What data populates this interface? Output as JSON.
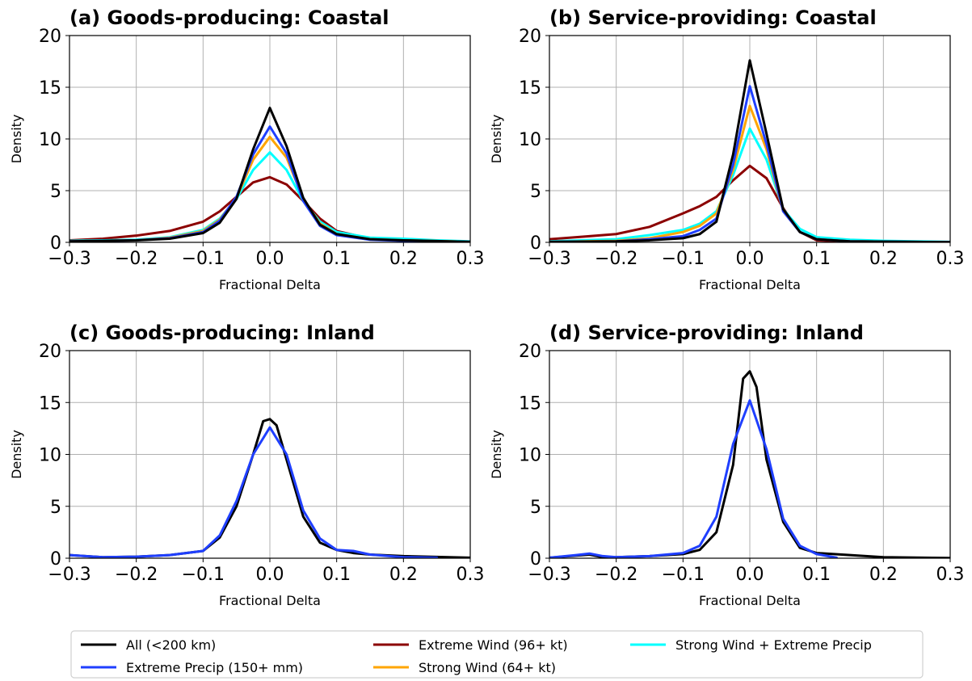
{
  "chart_data": [
    {
      "type": "line",
      "title": "(a) Goods-producing: Coastal",
      "xlabel": "Fractional Delta",
      "ylabel": "Density",
      "xlim": [
        -0.3,
        0.3
      ],
      "ylim": [
        0,
        20
      ],
      "xticks": [
        "−0.3",
        "−0.2",
        "−0.1",
        "0.0",
        "0.1",
        "0.2",
        "0.3"
      ],
      "yticks": [
        "0",
        "5",
        "10",
        "15",
        "20"
      ],
      "grid": true,
      "series": [
        {
          "name": "Extreme Wind (96+ kt)",
          "color": "#8b0000",
          "points": [
            [
              -0.3,
              0.2
            ],
            [
              -0.25,
              0.35
            ],
            [
              -0.2,
              0.65
            ],
            [
              -0.15,
              1.1
            ],
            [
              -0.1,
              2.0
            ],
            [
              -0.075,
              3.0
            ],
            [
              -0.05,
              4.4
            ],
            [
              -0.025,
              5.8
            ],
            [
              0,
              6.3
            ],
            [
              0.025,
              5.6
            ],
            [
              0.05,
              4.0
            ],
            [
              0.075,
              2.3
            ],
            [
              0.1,
              1.1
            ],
            [
              0.15,
              0.35
            ],
            [
              0.2,
              0.15
            ],
            [
              0.3,
              0.05
            ]
          ]
        },
        {
          "name": "Strong Wind + Extreme Precip",
          "color": "#00ffff",
          "points": [
            [
              -0.3,
              0.15
            ],
            [
              -0.2,
              0.25
            ],
            [
              -0.15,
              0.5
            ],
            [
              -0.1,
              1.2
            ],
            [
              -0.075,
              2.3
            ],
            [
              -0.05,
              4.2
            ],
            [
              -0.025,
              7.0
            ],
            [
              0,
              8.7
            ],
            [
              0.025,
              7.0
            ],
            [
              0.05,
              4.0
            ],
            [
              0.075,
              2.0
            ],
            [
              0.1,
              1.0
            ],
            [
              0.15,
              0.45
            ],
            [
              0.2,
              0.35
            ],
            [
              0.25,
              0.2
            ],
            [
              0.3,
              0.1
            ]
          ]
        },
        {
          "name": "Strong Wind (64+ kt)",
          "color": "#ffa500",
          "points": [
            [
              -0.3,
              0.1
            ],
            [
              -0.2,
              0.2
            ],
            [
              -0.15,
              0.45
            ],
            [
              -0.1,
              1.1
            ],
            [
              -0.075,
              2.2
            ],
            [
              -0.05,
              4.3
            ],
            [
              -0.025,
              8.0
            ],
            [
              0,
              10.2
            ],
            [
              0.025,
              8.2
            ],
            [
              0.05,
              4.2
            ],
            [
              0.075,
              1.8
            ],
            [
              0.1,
              0.8
            ],
            [
              0.15,
              0.3
            ],
            [
              0.2,
              0.2
            ],
            [
              0.3,
              0.05
            ]
          ]
        },
        {
          "name": "Extreme Precip (150+ mm)",
          "color": "#1f3fff",
          "points": [
            [
              -0.3,
              0.1
            ],
            [
              -0.2,
              0.2
            ],
            [
              -0.15,
              0.4
            ],
            [
              -0.1,
              1.0
            ],
            [
              -0.075,
              2.1
            ],
            [
              -0.05,
              4.4
            ],
            [
              -0.025,
              8.5
            ],
            [
              0,
              11.2
            ],
            [
              0.025,
              8.6
            ],
            [
              0.05,
              4.0
            ],
            [
              0.075,
              1.6
            ],
            [
              0.1,
              0.7
            ],
            [
              0.15,
              0.25
            ],
            [
              0.2,
              0.15
            ],
            [
              0.3,
              0.05
            ]
          ]
        },
        {
          "name": "All (<200 km)",
          "color": "#000000",
          "points": [
            [
              -0.3,
              0.1
            ],
            [
              -0.2,
              0.2
            ],
            [
              -0.15,
              0.35
            ],
            [
              -0.1,
              0.9
            ],
            [
              -0.075,
              1.9
            ],
            [
              -0.05,
              4.2
            ],
            [
              -0.025,
              9.0
            ],
            [
              0,
              13.0
            ],
            [
              0.025,
              9.3
            ],
            [
              0.05,
              4.3
            ],
            [
              0.075,
              1.7
            ],
            [
              0.1,
              0.8
            ],
            [
              0.15,
              0.3
            ],
            [
              0.2,
              0.2
            ],
            [
              0.3,
              0.05
            ]
          ]
        }
      ]
    },
    {
      "type": "line",
      "title": "(b) Service-providing: Coastal",
      "xlabel": "Fractional Delta",
      "ylabel": "Density",
      "xlim": [
        -0.3,
        0.3
      ],
      "ylim": [
        0,
        20
      ],
      "xticks": [
        "−0.3",
        "−0.2",
        "−0.1",
        "0.0",
        "0.1",
        "0.2",
        "0.3"
      ],
      "yticks": [
        "0",
        "5",
        "10",
        "15",
        "20"
      ],
      "grid": true,
      "series": [
        {
          "name": "Extreme Wind (96+ kt)",
          "color": "#8b0000",
          "points": [
            [
              -0.3,
              0.3
            ],
            [
              -0.25,
              0.55
            ],
            [
              -0.2,
              0.8
            ],
            [
              -0.15,
              1.5
            ],
            [
              -0.1,
              2.8
            ],
            [
              -0.075,
              3.5
            ],
            [
              -0.05,
              4.4
            ],
            [
              -0.025,
              6.0
            ],
            [
              0,
              7.4
            ],
            [
              0.025,
              6.2
            ],
            [
              0.05,
              3.3
            ],
            [
              0.075,
              1.0
            ],
            [
              0.1,
              0.2
            ],
            [
              0.15,
              0.05
            ],
            [
              0.3,
              0.0
            ]
          ]
        },
        {
          "name": "Strong Wind + Extreme Precip",
          "color": "#00ffff",
          "points": [
            [
              -0.3,
              0.1
            ],
            [
              -0.2,
              0.3
            ],
            [
              -0.15,
              0.7
            ],
            [
              -0.1,
              1.2
            ],
            [
              -0.075,
              1.8
            ],
            [
              -0.05,
              3.0
            ],
            [
              -0.025,
              6.5
            ],
            [
              0,
              11.0
            ],
            [
              0.025,
              8.0
            ],
            [
              0.05,
              3.2
            ],
            [
              0.075,
              1.3
            ],
            [
              0.1,
              0.5
            ],
            [
              0.15,
              0.25
            ],
            [
              0.2,
              0.15
            ],
            [
              0.3,
              0.05
            ]
          ]
        },
        {
          "name": "Strong Wind (64+ kt)",
          "color": "#ffa500",
          "points": [
            [
              -0.3,
              0.05
            ],
            [
              -0.2,
              0.15
            ],
            [
              -0.15,
              0.4
            ],
            [
              -0.1,
              1.0
            ],
            [
              -0.075,
              1.6
            ],
            [
              -0.05,
              2.8
            ],
            [
              -0.025,
              7.0
            ],
            [
              0,
              13.2
            ],
            [
              0.025,
              9.0
            ],
            [
              0.05,
              3.0
            ],
            [
              0.075,
              1.0
            ],
            [
              0.1,
              0.3
            ],
            [
              0.15,
              0.1
            ],
            [
              0.3,
              0.02
            ]
          ]
        },
        {
          "name": "Extreme Precip (150+ mm)",
          "color": "#1f3fff",
          "points": [
            [
              -0.3,
              0.05
            ],
            [
              -0.2,
              0.1
            ],
            [
              -0.15,
              0.3
            ],
            [
              -0.1,
              0.6
            ],
            [
              -0.075,
              1.2
            ],
            [
              -0.05,
              2.3
            ],
            [
              -0.025,
              7.5
            ],
            [
              0,
              15.1
            ],
            [
              0.025,
              9.5
            ],
            [
              0.05,
              3.0
            ],
            [
              0.075,
              1.0
            ],
            [
              0.1,
              0.3
            ],
            [
              0.15,
              0.1
            ],
            [
              0.3,
              0.02
            ]
          ]
        },
        {
          "name": "All (<200 km)",
          "color": "#000000",
          "points": [
            [
              -0.3,
              0.05
            ],
            [
              -0.2,
              0.1
            ],
            [
              -0.15,
              0.2
            ],
            [
              -0.1,
              0.4
            ],
            [
              -0.075,
              0.8
            ],
            [
              -0.05,
              2.0
            ],
            [
              -0.025,
              8.5
            ],
            [
              0,
              17.6
            ],
            [
              0.025,
              10.5
            ],
            [
              0.05,
              3.2
            ],
            [
              0.075,
              1.0
            ],
            [
              0.1,
              0.3
            ],
            [
              0.15,
              0.1
            ],
            [
              0.3,
              0.02
            ]
          ]
        }
      ]
    },
    {
      "type": "line",
      "title": "(c) Goods-producing: Inland",
      "xlabel": "Fractional Delta",
      "ylabel": "Density",
      "xlim": [
        -0.3,
        0.3
      ],
      "ylim": [
        0,
        20
      ],
      "xticks": [
        "−0.3",
        "−0.2",
        "−0.1",
        "0.0",
        "0.1",
        "0.2",
        "0.3"
      ],
      "yticks": [
        "0",
        "5",
        "10",
        "15",
        "20"
      ],
      "grid": true,
      "series": [
        {
          "name": "All (<200 km)",
          "color": "#000000",
          "points": [
            [
              -0.3,
              0.3
            ],
            [
              -0.25,
              0.1
            ],
            [
              -0.2,
              0.15
            ],
            [
              -0.15,
              0.3
            ],
            [
              -0.1,
              0.7
            ],
            [
              -0.075,
              2.0
            ],
            [
              -0.05,
              5.0
            ],
            [
              -0.025,
              10.0
            ],
            [
              -0.01,
              13.2
            ],
            [
              0,
              13.4
            ],
            [
              0.01,
              12.8
            ],
            [
              0.025,
              9.5
            ],
            [
              0.05,
              4.0
            ],
            [
              0.075,
              1.5
            ],
            [
              0.1,
              0.8
            ],
            [
              0.125,
              0.5
            ],
            [
              0.15,
              0.35
            ],
            [
              0.2,
              0.2
            ],
            [
              0.3,
              0.05
            ]
          ]
        },
        {
          "name": "Extreme Precip (150+ mm)",
          "color": "#1f3fff",
          "points": [
            [
              -0.3,
              0.3
            ],
            [
              -0.25,
              0.1
            ],
            [
              -0.2,
              0.15
            ],
            [
              -0.15,
              0.3
            ],
            [
              -0.1,
              0.7
            ],
            [
              -0.075,
              2.2
            ],
            [
              -0.05,
              5.5
            ],
            [
              -0.025,
              10.0
            ],
            [
              0,
              12.6
            ],
            [
              0.025,
              10.0
            ],
            [
              0.05,
              4.6
            ],
            [
              0.075,
              1.9
            ],
            [
              0.1,
              0.8
            ],
            [
              0.125,
              0.7
            ],
            [
              0.15,
              0.35
            ],
            [
              0.2,
              0.1
            ],
            [
              0.25,
              0.05
            ]
          ]
        }
      ]
    },
    {
      "type": "line",
      "title": "(d) Service-providing: Inland",
      "xlabel": "Fractional Delta",
      "ylabel": "Density",
      "xlim": [
        -0.3,
        0.3
      ],
      "ylim": [
        0,
        20
      ],
      "xticks": [
        "−0.3",
        "−0.2",
        "−0.1",
        "0.0",
        "0.1",
        "0.2",
        "0.3"
      ],
      "yticks": [
        "0",
        "5",
        "10",
        "15",
        "20"
      ],
      "grid": true,
      "series": [
        {
          "name": "All (<200 km)",
          "color": "#000000",
          "points": [
            [
              -0.3,
              0.05
            ],
            [
              -0.26,
              0.25
            ],
            [
              -0.24,
              0.35
            ],
            [
              -0.22,
              0.1
            ],
            [
              -0.2,
              0.1
            ],
            [
              -0.15,
              0.2
            ],
            [
              -0.1,
              0.4
            ],
            [
              -0.075,
              0.8
            ],
            [
              -0.05,
              2.5
            ],
            [
              -0.025,
              9.0
            ],
            [
              -0.01,
              17.3
            ],
            [
              0,
              18.0
            ],
            [
              0.01,
              16.5
            ],
            [
              0.025,
              9.5
            ],
            [
              0.05,
              3.5
            ],
            [
              0.075,
              1.0
            ],
            [
              0.1,
              0.5
            ],
            [
              0.15,
              0.3
            ],
            [
              0.2,
              0.1
            ],
            [
              0.3,
              0.02
            ]
          ]
        },
        {
          "name": "Extreme Precip (150+ mm)",
          "color": "#1f3fff",
          "points": [
            [
              -0.3,
              0.05
            ],
            [
              -0.26,
              0.3
            ],
            [
              -0.24,
              0.45
            ],
            [
              -0.22,
              0.2
            ],
            [
              -0.2,
              0.1
            ],
            [
              -0.15,
              0.2
            ],
            [
              -0.1,
              0.5
            ],
            [
              -0.075,
              1.2
            ],
            [
              -0.05,
              4.0
            ],
            [
              -0.025,
              11.0
            ],
            [
              0,
              15.2
            ],
            [
              0.025,
              10.5
            ],
            [
              0.05,
              3.8
            ],
            [
              0.075,
              1.2
            ],
            [
              0.1,
              0.4
            ],
            [
              0.13,
              0.05
            ]
          ]
        }
      ]
    }
  ],
  "legend": {
    "placement": "bottom",
    "items": [
      {
        "label": "All (<200 km)",
        "color": "#000000"
      },
      {
        "label": "Extreme Precip (150+ mm)",
        "color": "#1f3fff"
      },
      {
        "label": "Extreme Wind (96+ kt)",
        "color": "#8b0000"
      },
      {
        "label": "Strong Wind (64+ kt)",
        "color": "#ffa500"
      },
      {
        "label": "Strong Wind + Extreme Precip",
        "color": "#00ffff"
      }
    ]
  }
}
